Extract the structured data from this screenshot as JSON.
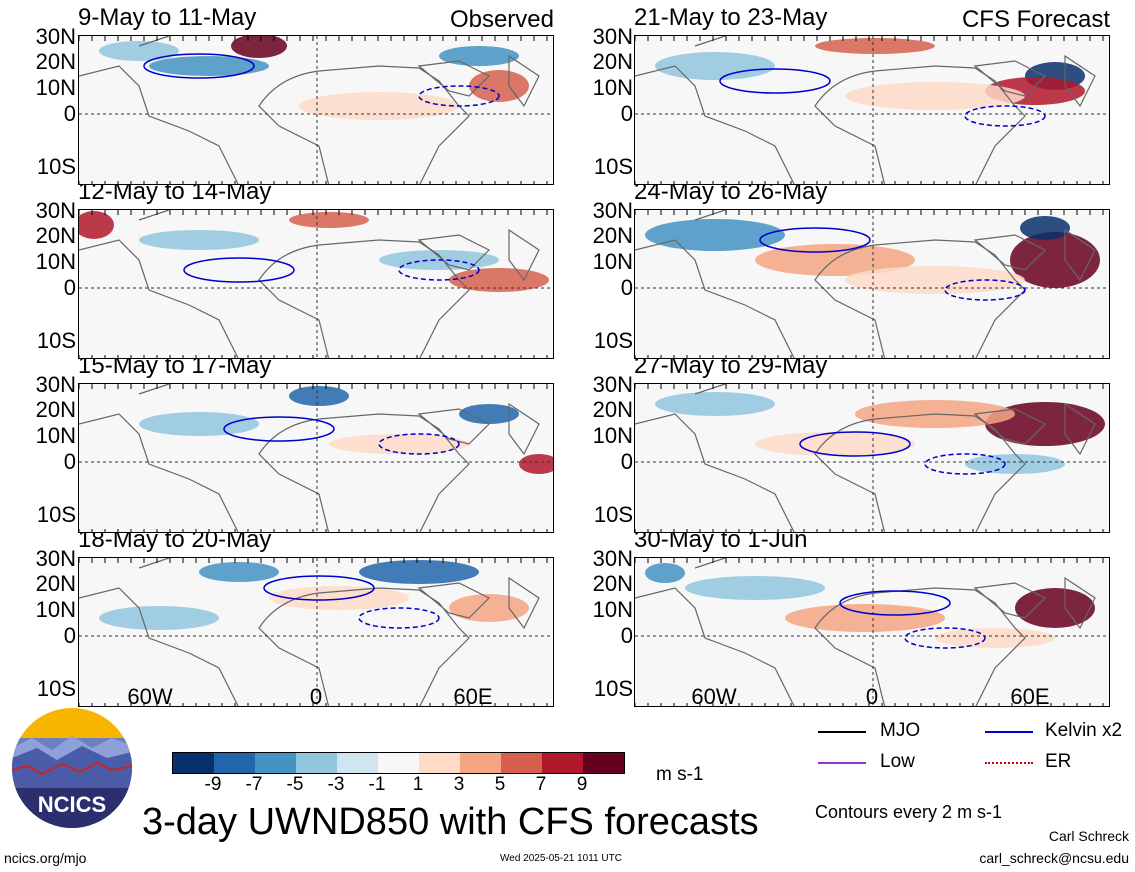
{
  "panels": [
    {
      "id": "p1",
      "title": "9-May to 11-May",
      "tag": "Observed"
    },
    {
      "id": "p2",
      "title": "21-May to 23-May",
      "tag": "CFS Forecast"
    },
    {
      "id": "p3",
      "title": "12-May to 14-May",
      "tag": ""
    },
    {
      "id": "p4",
      "title": "24-May to 26-May",
      "tag": ""
    },
    {
      "id": "p5",
      "title": "15-May to 17-May",
      "tag": ""
    },
    {
      "id": "p6",
      "title": "27-May to 29-May",
      "tag": ""
    },
    {
      "id": "p7",
      "title": "18-May to 20-May",
      "tag": ""
    },
    {
      "id": "p8",
      "title": "30-May to 1-Jun",
      "tag": ""
    }
  ],
  "lat_labels": [
    "30N",
    "20N",
    "10N",
    "0",
    "10S"
  ],
  "lon_labels": [
    "60W",
    "0",
    "60E"
  ],
  "colorbar": {
    "colors": [
      "#08306b",
      "#2166ac",
      "#4393c3",
      "#92c5de",
      "#d1e5f0",
      "#f7f7f7",
      "#fddbc7",
      "#f4a582",
      "#d6604d",
      "#b2182b",
      "#67001f"
    ],
    "ticks": [
      "-9",
      "-7",
      "-5",
      "-3",
      "-1",
      "1",
      "3",
      "5",
      "7",
      "9"
    ],
    "unit": "m s-1"
  },
  "legend": {
    "mjo": {
      "label": "MJO",
      "color": "#000000"
    },
    "kelvin": {
      "label": "Kelvin x2",
      "color": "#0000cc"
    },
    "low": {
      "label": "Low",
      "color": "#9933cc"
    },
    "er": {
      "label": "ER",
      "color": "#cc0000"
    },
    "contours": "Contours every 2 m s-1"
  },
  "footer": {
    "title": "3-day UWND850 with CFS forecasts",
    "logo_text": "NCICS",
    "url": "ncics.org/mjo",
    "timestamp": "Wed 2025-05-21 1011 UTC",
    "author": "Carl Schreck",
    "email": "carl_schreck@ncsu.edu"
  }
}
